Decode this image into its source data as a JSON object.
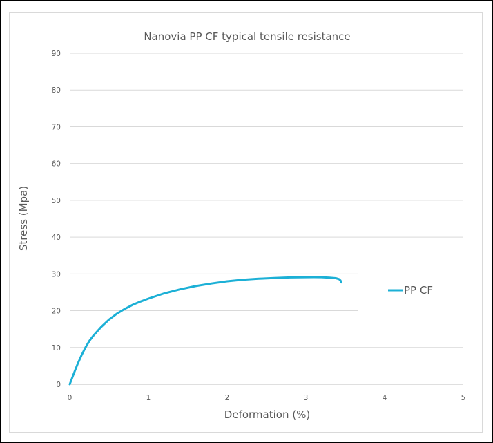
{
  "chart_data": {
    "type": "line",
    "title": "Nanovia PP CF typical tensile resistance",
    "xlabel": "Deformation (%)",
    "ylabel": "Stress  (Mpa)",
    "xlim": [
      0,
      5
    ],
    "ylim": [
      0,
      90
    ],
    "x_ticks": [
      "0",
      "1",
      "2",
      "3",
      "4",
      "5"
    ],
    "y_ticks": [
      "0",
      "10",
      "20",
      "30",
      "40",
      "50",
      "60",
      "70",
      "80",
      "90"
    ],
    "grid": true,
    "legend_position": "right",
    "series": [
      {
        "name": "PP CF",
        "color": "#1cb0d6",
        "x": [
          0,
          0.05,
          0.1,
          0.15,
          0.2,
          0.25,
          0.3,
          0.4,
          0.5,
          0.6,
          0.7,
          0.8,
          0.9,
          1.0,
          1.2,
          1.4,
          1.6,
          1.8,
          2.0,
          2.2,
          2.4,
          2.6,
          2.8,
          3.0,
          3.1,
          3.2,
          3.3,
          3.38,
          3.42,
          3.44,
          3.45
        ],
        "y": [
          0,
          2.8,
          5.5,
          7.9,
          10.0,
          11.8,
          13.2,
          15.6,
          17.6,
          19.2,
          20.5,
          21.6,
          22.5,
          23.3,
          24.7,
          25.8,
          26.7,
          27.4,
          28.0,
          28.4,
          28.7,
          28.9,
          29.05,
          29.1,
          29.12,
          29.1,
          29.0,
          28.85,
          28.6,
          28.2,
          27.7
        ]
      }
    ]
  }
}
